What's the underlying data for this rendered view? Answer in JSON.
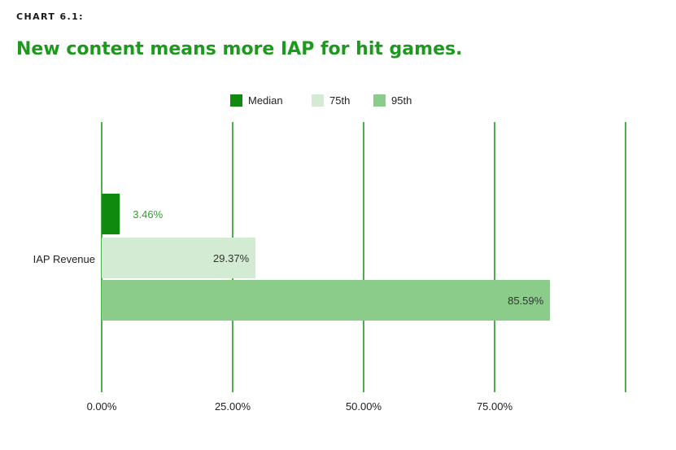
{
  "header": {
    "kicker": "CHART 6.1:",
    "title": "New content means more IAP for hit games."
  },
  "colors": {
    "title": "#1d9a1d",
    "grid": "#1f9a1f",
    "median": "#0f8a0f",
    "p75": "#d3ebd2",
    "p95": "#8ccc8a",
    "median_label": "#2ea02e",
    "value_label": "#333333"
  },
  "chart_data": {
    "type": "bar",
    "orientation": "horizontal",
    "title": "New content means more IAP for hit games.",
    "categories": [
      "IAP Revenue"
    ],
    "series": [
      {
        "name": "Median",
        "values": [
          3.46
        ],
        "label": "3.46%"
      },
      {
        "name": "75th",
        "values": [
          29.37
        ],
        "label": "29.37%"
      },
      {
        "name": "95th",
        "values": [
          85.59
        ],
        "label": "85.59%"
      }
    ],
    "xlim": [
      0,
      100
    ],
    "x_ticks": [
      0,
      25,
      50,
      75,
      100
    ],
    "x_tick_labels": [
      "0.00%",
      "25.00%",
      "50.00%",
      "75.00%",
      ""
    ],
    "xlabel": "",
    "ylabel": "",
    "grid": true,
    "legend_position": "top-center"
  }
}
